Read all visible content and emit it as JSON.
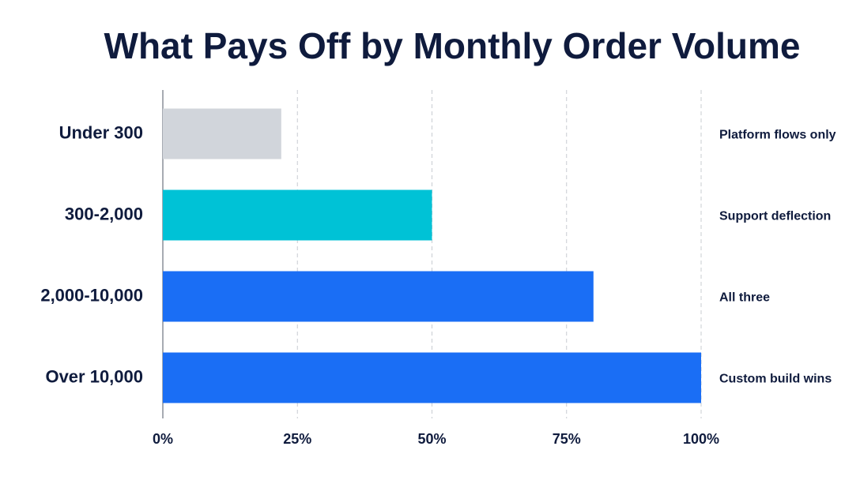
{
  "chart_data": {
    "type": "hbar",
    "title": "What Pays Off by Monthly Order Volume",
    "categories": [
      "Under 300",
      "300-2,000",
      "2,000-10,000",
      "Over 10,000"
    ],
    "values": [
      22,
      50,
      80,
      100
    ],
    "colors": [
      "#d1d5db",
      "#00c2d6",
      "#1a6ef5",
      "#1a6ef5"
    ],
    "annotations": [
      "Platform flows only",
      "Support deflection",
      "All three",
      "Custom build wins"
    ],
    "xlim": [
      0,
      100
    ],
    "xticks": [
      {
        "value": 0,
        "label": "0%"
      },
      {
        "value": 25,
        "label": "25%"
      },
      {
        "value": 50,
        "label": "50%"
      },
      {
        "value": 75,
        "label": "75%"
      },
      {
        "value": 100,
        "label": "100%"
      }
    ],
    "grid": true
  }
}
